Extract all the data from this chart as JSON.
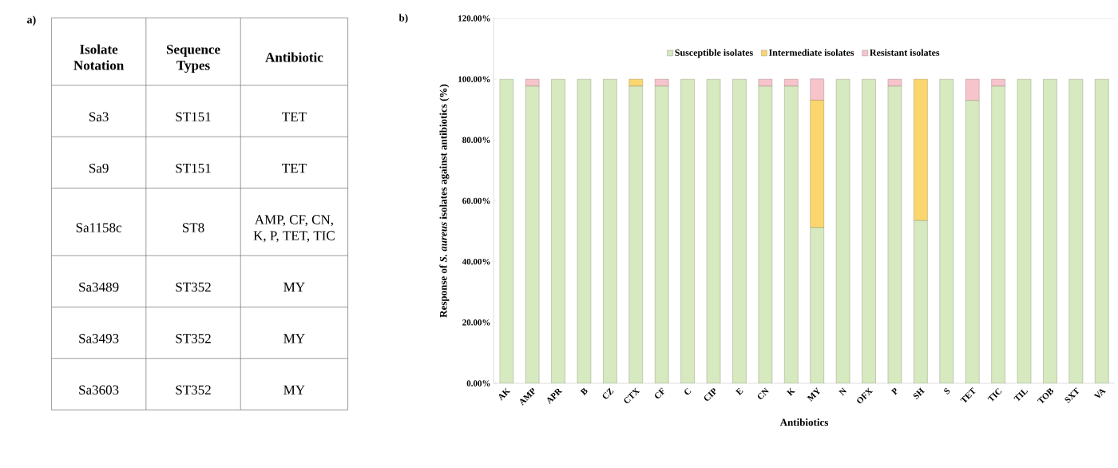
{
  "chart_data": [
    {
      "type": "other",
      "title": "a)",
      "categories": [
        "Isolate Notation",
        "Sequence Types",
        "Antibiotic"
      ],
      "annotations": [
        "Sa3",
        "ST151",
        "TET",
        "Sa9",
        "ST151",
        "TET",
        "Sa1158c",
        "ST8",
        "AMP, CF, CN, K, P, TET, TIC",
        "Sa3489",
        "ST352",
        "MY",
        "Sa3493",
        "ST352",
        "MY",
        "Sa3603",
        "ST352",
        "MY"
      ]
    },
    {
      "type": "bar",
      "title": "b)",
      "stacked": true,
      "legend": "top",
      "xlabel": "Antibiotics",
      "ylabel": "Response of *S. aureus* isolates against antibiotics (%)",
      "categories": [
        "AK",
        "AMP",
        "APR",
        "B",
        "CZ",
        "CTX",
        "CF",
        "C",
        "CIP",
        "E",
        "CN",
        "K",
        "MY",
        "N",
        "OFX",
        "P",
        "SH",
        "S",
        "TET",
        "TIC",
        "TIL",
        "TOB",
        "SXT",
        "VA"
      ],
      "ylim": [
        0,
        120
      ],
      "yticks": [
        {
          "value": 0,
          "label": "0.00%"
        },
        {
          "value": 20,
          "label": "20.00%"
        },
        {
          "value": 40,
          "label": "40.00%"
        },
        {
          "value": 60,
          "label": "60.00%"
        },
        {
          "value": 80,
          "label": "80.00%"
        },
        {
          "value": 100,
          "label": "100.00%"
        },
        {
          "value": 120,
          "label": "120.00%"
        }
      ],
      "series": [
        {
          "name": "Susceptible isolates",
          "color": "#d6e9bf",
          "values": [
            100,
            97.7,
            100,
            100,
            100,
            97.7,
            97.7,
            100,
            100,
            100,
            97.7,
            97.7,
            51.2,
            100,
            100,
            97.7,
            53.5,
            100,
            93.0,
            97.7,
            100,
            100,
            100,
            100
          ]
        },
        {
          "name": "Intermediate isolates",
          "color": "#fbd66f",
          "values": [
            0,
            0,
            0,
            0,
            0,
            2.3,
            0,
            0,
            0,
            0,
            0,
            0,
            41.9,
            0,
            0,
            0,
            46.5,
            0,
            0,
            0,
            0,
            0,
            0,
            0
          ]
        },
        {
          "name": "Resistant isolates",
          "color": "#f7c4cb",
          "values": [
            0,
            2.3,
            0,
            0,
            0,
            0,
            2.3,
            0,
            0,
            0,
            2.3,
            2.3,
            7.0,
            0,
            0,
            2.3,
            0,
            0,
            7.0,
            2.3,
            0,
            0,
            0,
            0
          ]
        }
      ]
    }
  ]
}
